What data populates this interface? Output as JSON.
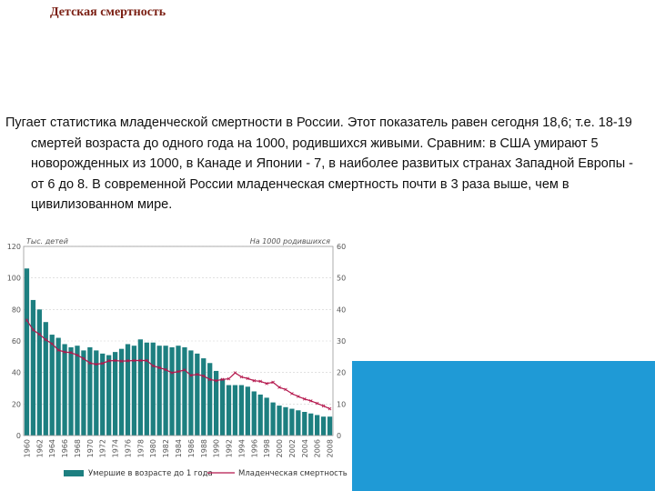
{
  "slide": {
    "title": "Детская смертность",
    "paragraph": "Пугает статистика младенческой смертности в России. Этот показатель равен сегодня 18,6; т.е. 18-19 смертей возраста до одного года на 1000, родившихся живыми. Сравним: в США умирают 5 новорожденных из 1000, в Канаде и Японии - 7, в наиболее развитых странах Западной Европы - от 6 до 8. В современной России младенческая смертность почти в 3 раза выше, чем в цивилизованном мире."
  },
  "chart_data": {
    "type": "bar",
    "left_axis_title": "Тыс. детей",
    "right_axis_title": "На 1000 родившихся",
    "x_tick_labels": [
      "1960",
      "1962",
      "1964",
      "1966",
      "1968",
      "1970",
      "1972",
      "1974",
      "1976",
      "1978",
      "1980",
      "1982",
      "1984",
      "1986",
      "1988",
      "1990",
      "1992",
      "1994",
      "1996",
      "1998",
      "2000",
      "2002",
      "2004",
      "2006",
      "2008"
    ],
    "x": [
      1960,
      1961,
      1962,
      1963,
      1964,
      1965,
      1966,
      1967,
      1968,
      1969,
      1970,
      1971,
      1972,
      1973,
      1974,
      1975,
      1976,
      1977,
      1978,
      1979,
      1980,
      1981,
      1982,
      1983,
      1984,
      1985,
      1986,
      1987,
      1988,
      1989,
      1990,
      1991,
      1992,
      1993,
      1994,
      1995,
      1996,
      1997,
      1998,
      1999,
      2000,
      2001,
      2002,
      2003,
      2004,
      2005,
      2006,
      2007,
      2008
    ],
    "ylim_left": [
      0,
      120
    ],
    "yticks_left": [
      0,
      20,
      40,
      60,
      80,
      100,
      120
    ],
    "ylim_right": [
      0,
      60
    ],
    "yticks_right": [
      0,
      10,
      20,
      30,
      40,
      50,
      60
    ],
    "series": [
      {
        "name": "Умершие в возрасте до 1 года",
        "type": "bar",
        "axis": "left",
        "color": "#1d7f80",
        "values": [
          106,
          86,
          80,
          72,
          64,
          62,
          58,
          56,
          57,
          54,
          56,
          54,
          52,
          51,
          53,
          55,
          58,
          57,
          61,
          59,
          59,
          57,
          57,
          56,
          57,
          56,
          54,
          52,
          49,
          46,
          41,
          36,
          32,
          32,
          32,
          31,
          28,
          26,
          24,
          21,
          19,
          18,
          17,
          16,
          15,
          14,
          13,
          12,
          12
        ]
      },
      {
        "name": "Младенческая смертность",
        "type": "line",
        "axis": "right",
        "color": "#b4164c",
        "values": [
          36.6,
          33.5,
          32.1,
          30.4,
          29.1,
          27.1,
          26.5,
          26.3,
          25.5,
          24.4,
          23.0,
          22.6,
          22.9,
          23.7,
          23.8,
          23.6,
          23.7,
          23.8,
          23.8,
          23.8,
          22.1,
          21.5,
          20.9,
          19.9,
          20.3,
          20.8,
          19.1,
          19.4,
          18.9,
          17.8,
          17.4,
          17.8,
          18.0,
          19.9,
          18.6,
          18.1,
          17.4,
          17.2,
          16.5,
          16.9,
          15.3,
          14.6,
          13.3,
          12.4,
          11.6,
          11.0,
          10.2,
          9.4,
          8.5
        ]
      }
    ],
    "legend_position": "bottom"
  }
}
